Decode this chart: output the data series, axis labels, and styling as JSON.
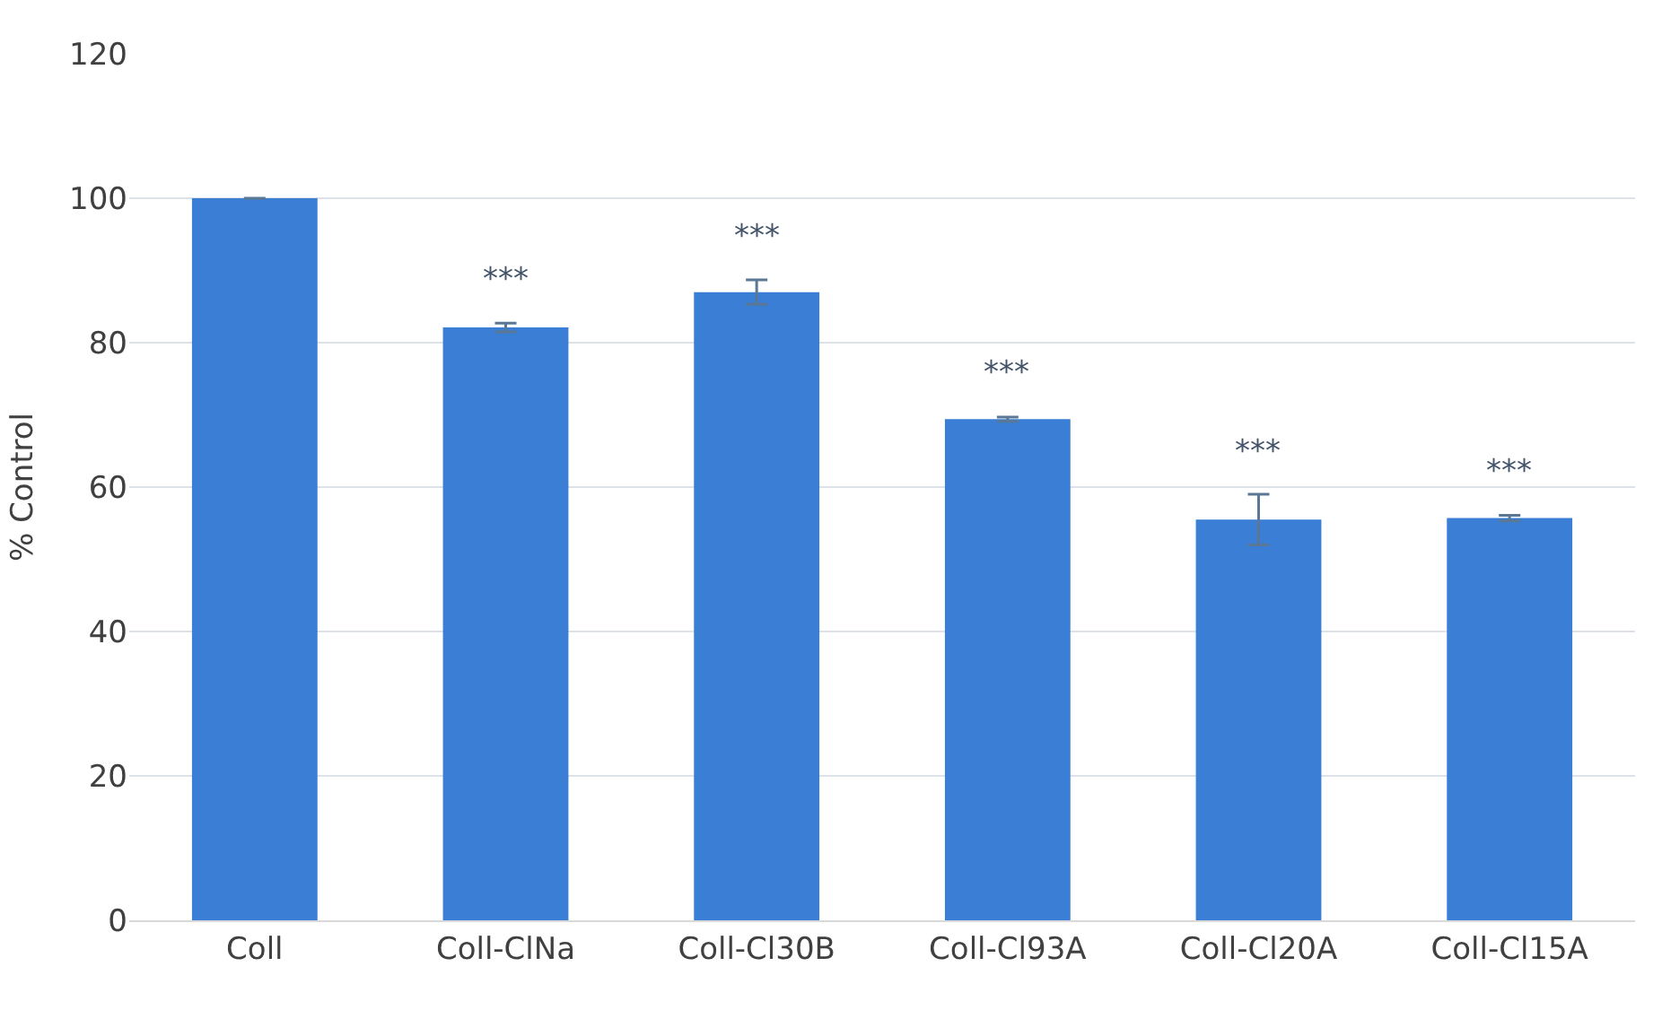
{
  "chart_data": {
    "type": "bar",
    "ylabel": "% Control",
    "categories": [
      "Coll",
      "Coll-ClNa",
      "Coll-Cl30B",
      "Coll-Cl93A",
      "Coll-Cl20A",
      "Coll-Cl15A"
    ],
    "values": [
      100,
      82.1,
      87.0,
      69.4,
      55.5,
      55.7
    ],
    "errors": [
      null,
      0.6,
      1.7,
      0.3,
      3.5,
      0.4
    ],
    "color": "#3a7fd5",
    "ylim": [
      0,
      120
    ],
    "yticks": [
      0,
      20,
      40,
      60,
      80,
      100,
      120
    ],
    "grid": "y",
    "annotations": [
      "***",
      "***",
      "***",
      "***",
      "***"
    ]
  }
}
